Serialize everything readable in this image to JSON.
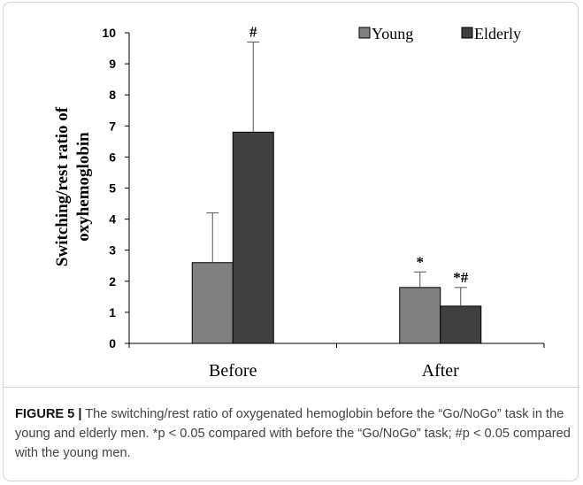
{
  "chart_data": {
    "type": "bar",
    "categories": [
      "Before",
      "After"
    ],
    "series": [
      {
        "name": "Young",
        "values": [
          2.6,
          1.8
        ],
        "errors": [
          1.6,
          0.5
        ],
        "color": "#808080",
        "annotations": [
          "",
          "*"
        ]
      },
      {
        "name": "Elderly",
        "values": [
          6.8,
          1.2
        ],
        "errors": [
          2.9,
          0.6
        ],
        "color": "#404040",
        "annotations": [
          "#",
          "*#"
        ]
      }
    ],
    "title": "",
    "xlabel": "",
    "ylabel": "Switching/rest ratio of oxyhemoglobin",
    "ylabel_lines": [
      "Switching/rest ratio of",
      "oxyhemoglobin"
    ],
    "ylim": [
      0,
      10
    ],
    "yticks": [
      0,
      1,
      2,
      3,
      4,
      5,
      6,
      7,
      8,
      9,
      10
    ],
    "grid": false,
    "legend_position": "top-right"
  },
  "caption": {
    "label": "FIGURE 5 |",
    "text": " The switching/rest ratio of oxygenated hemoglobin before the “Go/NoGo” task in the young and elderly men. *p < 0.05 compared with before the “Go/NoGo” task; #p < 0.05 compared with the young men."
  }
}
